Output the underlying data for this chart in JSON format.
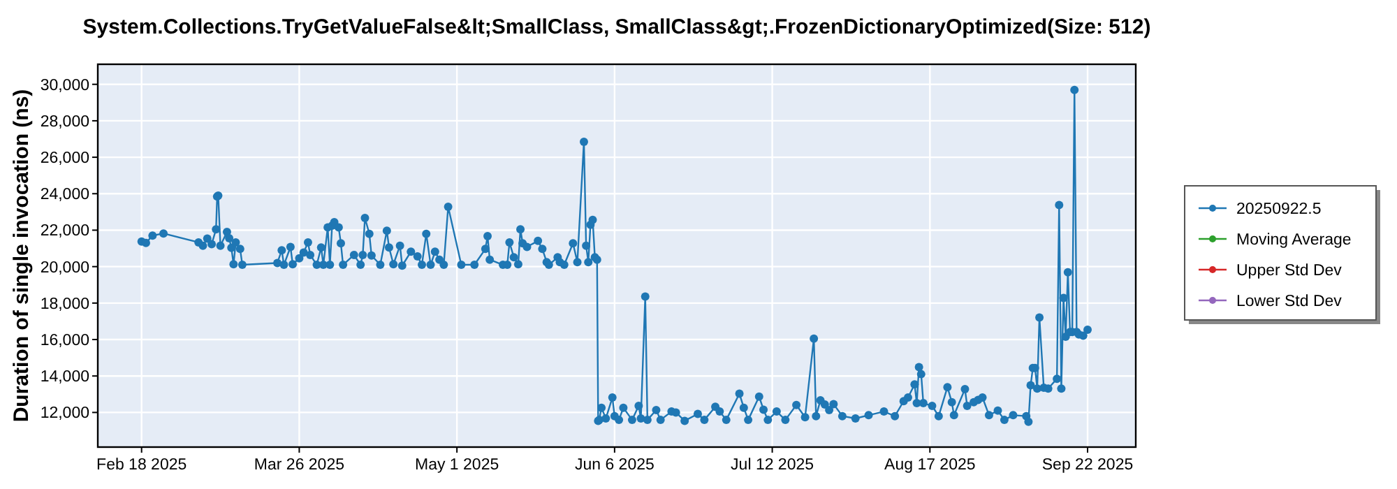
{
  "chart_data": {
    "type": "line",
    "title": "System.Collections.TryGetValueFalse&lt;SmallClass, SmallClass&gt;.FrozenDictionaryOptimized(Size: 512)",
    "ylabel": "Duration of single invocation (ns)",
    "x": [
      "2025-02-18",
      "2025-02-19",
      "2025-02-20T12:00",
      "2025-02-23",
      "2025-03-03",
      "2025-03-04",
      "2025-03-05",
      "2025-03-06",
      "2025-03-07",
      "2025-03-07T06:00",
      "2025-03-07T12:00",
      "2025-03-08",
      "2025-03-09T12:00",
      "2025-03-10",
      "2025-03-10T12:00",
      "2025-03-11",
      "2025-03-11T12:00",
      "2025-03-12T12:00",
      "2025-03-13",
      "2025-03-21",
      "2025-03-22",
      "2025-03-22T12:00",
      "2025-03-24",
      "2025-03-24T12:00",
      "2025-03-26",
      "2025-03-27",
      "2025-03-28",
      "2025-03-28T12:00",
      "2025-03-30",
      "2025-03-31",
      "2025-03-31T12:00",
      "2025-04-01T12:00",
      "2025-04-02",
      "2025-04-02T12:00",
      "2025-04-03",
      "2025-04-04",
      "2025-04-04T12:00",
      "2025-04-05",
      "2025-04-07T12:00",
      "2025-04-09",
      "2025-04-09T12:00",
      "2025-04-10",
      "2025-04-11",
      "2025-04-11T12:00",
      "2025-04-13T12:00",
      "2025-04-15",
      "2025-04-15T12:00",
      "2025-04-16T12:00",
      "2025-04-18",
      "2025-04-18T12:00",
      "2025-04-20T12:00",
      "2025-04-22",
      "2025-04-23",
      "2025-04-24",
      "2025-04-25",
      "2025-04-26",
      "2025-04-27",
      "2025-04-28",
      "2025-04-29",
      "2025-05-02",
      "2025-05-05",
      "2025-05-07T12:00",
      "2025-05-08",
      "2025-05-08T12:00",
      "2025-05-11T12:00",
      "2025-05-12T12:00",
      "2025-05-13",
      "2025-05-14",
      "2025-05-15",
      "2025-05-15T12:00",
      "2025-05-16",
      "2025-05-17",
      "2025-05-19T12:00",
      "2025-05-20T12:00",
      "2025-05-21T12:00",
      "2025-05-22",
      "2025-05-24",
      "2025-05-24T12:00",
      "2025-05-25T12:00",
      "2025-05-27T12:00",
      "2025-05-28T12:00",
      "2025-05-30",
      "2025-05-30T12:00",
      "2025-05-31",
      "2025-05-31T12:00",
      "2025-06-01",
      "2025-06-01T12:00",
      "2025-06-02",
      "2025-06-02T06:00",
      "2025-06-02T12:00",
      "2025-06-03",
      "2025-06-04",
      "2025-06-05T12:00",
      "2025-06-06",
      "2025-06-07",
      "2025-06-08",
      "2025-06-10",
      "2025-06-11T12:00",
      "2025-06-12",
      "2025-06-13",
      "2025-06-13T12:00",
      "2025-06-15T12:00",
      "2025-06-16T12:00",
      "2025-06-19",
      "2025-06-20",
      "2025-06-22",
      "2025-06-25",
      "2025-06-26T12:00",
      "2025-06-29",
      "2025-06-30",
      "2025-07-01T12:00",
      "2025-07-04T12:00",
      "2025-07-05T12:00",
      "2025-07-06T12:00",
      "2025-07-09",
      "2025-07-10",
      "2025-07-11",
      "2025-07-13",
      "2025-07-15",
      "2025-07-17T12:00",
      "2025-07-19T12:00",
      "2025-07-21T12:00",
      "2025-07-22",
      "2025-07-23",
      "2025-07-24",
      "2025-07-25",
      "2025-07-26",
      "2025-07-28",
      "2025-07-31",
      "2025-08-03",
      "2025-08-06T12:00",
      "2025-08-09",
      "2025-08-11",
      "2025-08-12",
      "2025-08-13T12:00",
      "2025-08-14",
      "2025-08-14T12:00",
      "2025-08-15",
      "2025-08-15T12:00",
      "2025-08-17T12:00",
      "2025-08-19",
      "2025-08-21",
      "2025-08-22",
      "2025-08-22T12:00",
      "2025-08-25",
      "2025-08-25T12:00",
      "2025-08-27",
      "2025-08-28",
      "2025-08-29",
      "2025-08-30T12:00",
      "2025-09-01T12:00",
      "2025-09-03",
      "2025-09-05",
      "2025-09-08",
      "2025-09-08T12:00",
      "2025-09-09",
      "2025-09-09T12:00",
      "2025-09-10",
      "2025-09-10T12:00",
      "2025-09-11",
      "2025-09-12",
      "2025-09-13",
      "2025-09-15",
      "2025-09-15T12:00",
      "2025-09-16",
      "2025-09-16T12:00",
      "2025-09-17",
      "2025-09-17T12:00",
      "2025-09-18",
      "2025-09-18T12:00",
      "2025-09-19",
      "2025-09-19T12:00",
      "2025-09-20",
      "2025-09-21",
      "2025-09-22"
    ],
    "series": [
      {
        "name": "20250922.5",
        "color": "#1f77b4",
        "values": [
          21380,
          21300,
          21700,
          21820,
          21330,
          21150,
          21540,
          21230,
          22050,
          23850,
          23900,
          21150,
          21900,
          21560,
          21030,
          20130,
          21330,
          20970,
          20100,
          20200,
          20900,
          20100,
          21080,
          20130,
          20460,
          20770,
          21330,
          20640,
          20100,
          21050,
          20100,
          22150,
          20100,
          22250,
          22440,
          22150,
          21280,
          20100,
          20640,
          20100,
          20640,
          22670,
          21800,
          20610,
          20100,
          21970,
          21050,
          20130,
          21150,
          20050,
          20820,
          20560,
          20100,
          21800,
          20100,
          20820,
          20380,
          20100,
          23280,
          20100,
          20100,
          20970,
          21670,
          20380,
          20100,
          20100,
          21330,
          20510,
          20130,
          22050,
          21280,
          21080,
          21410,
          20970,
          20250,
          20100,
          20510,
          20250,
          20100,
          21280,
          20250,
          26850,
          21150,
          20250,
          22300,
          22560,
          20510,
          20380,
          11540,
          11590,
          12260,
          11670,
          12820,
          11800,
          11590,
          12260,
          11590,
          12360,
          11670,
          18360,
          11590,
          12130,
          11590,
          12050,
          12000,
          11540,
          11920,
          11590,
          12310,
          12050,
          11590,
          13030,
          12260,
          11590,
          12870,
          12150,
          11590,
          12050,
          11590,
          12410,
          11740,
          16050,
          11800,
          12670,
          12440,
          12130,
          12460,
          11800,
          11670,
          11850,
          12050,
          11800,
          12620,
          12820,
          13540,
          12510,
          14490,
          14100,
          12510,
          12360,
          11800,
          13390,
          12560,
          11850,
          13280,
          12360,
          12560,
          12690,
          12820,
          11850,
          12100,
          11590,
          11850,
          11800,
          11490,
          13490,
          14440,
          14440,
          13310,
          17210,
          13360,
          13310,
          13850,
          23380,
          13310,
          18280,
          16150,
          19690,
          16410,
          16410,
          29690,
          16410,
          16280,
          16210,
          16540
        ]
      },
      {
        "name": "Moving Average",
        "color": "#2ca02c",
        "values": [
          null,
          null,
          null,
          null,
          null,
          null,
          null,
          null,
          null,
          null,
          null,
          null,
          null,
          null,
          null,
          null,
          null,
          null,
          null,
          null,
          null,
          null,
          null,
          null,
          null,
          null,
          null,
          null,
          null,
          null,
          null,
          null,
          null,
          null,
          null,
          null,
          null,
          null,
          null,
          null,
          null,
          null,
          null,
          null,
          null,
          null,
          null,
          null,
          null,
          null,
          null,
          null,
          null,
          null,
          null,
          null,
          null,
          null,
          null,
          null,
          null,
          null,
          null,
          null,
          null,
          null,
          null,
          null,
          null,
          null,
          null,
          null,
          null,
          null,
          null,
          null,
          null,
          null,
          null,
          null,
          null,
          null,
          null,
          null,
          null,
          null,
          null,
          null,
          null,
          null,
          null,
          null,
          null,
          null,
          null,
          null,
          null,
          null,
          null,
          null,
          null,
          null,
          null,
          null,
          null,
          null,
          null,
          null,
          null,
          null,
          null,
          null,
          null,
          null,
          null,
          null,
          null,
          null,
          null,
          null,
          null,
          null,
          null,
          null,
          null,
          null,
          null,
          null,
          null,
          null,
          null,
          null,
          null,
          null,
          null,
          null,
          null,
          null,
          null,
          null,
          null,
          null,
          null,
          null,
          null,
          null,
          null,
          null,
          null,
          null,
          null,
          null,
          null,
          null,
          null,
          null,
          null,
          null,
          null,
          null,
          null,
          null,
          null,
          null,
          null,
          null,
          null,
          null,
          null,
          null,
          null,
          null,
          null,
          null,
          null
        ]
      },
      {
        "name": "Upper Std Dev",
        "color": "#d62728",
        "values": [
          null,
          null,
          null,
          null,
          null,
          null,
          null,
          null,
          null,
          null,
          null,
          null,
          null,
          null,
          null,
          null,
          null,
          null,
          null,
          null,
          null,
          null,
          null,
          null,
          null,
          null,
          null,
          null,
          null,
          null,
          null,
          null,
          null,
          null,
          null,
          null,
          null,
          null,
          null,
          null,
          null,
          null,
          null,
          null,
          null,
          null,
          null,
          null,
          null,
          null,
          null,
          null,
          null,
          null,
          null,
          null,
          null,
          null,
          null,
          null,
          null,
          null,
          null,
          null,
          null,
          null,
          null,
          null,
          null,
          null,
          null,
          null,
          null,
          null,
          null,
          null,
          null,
          null,
          null,
          null,
          null,
          null,
          null,
          null,
          null,
          null,
          null,
          null,
          null,
          null,
          null,
          null,
          null,
          null,
          null,
          null,
          null,
          null,
          null,
          null,
          null,
          null,
          null,
          null,
          null,
          null,
          null,
          null,
          null,
          null,
          null,
          null,
          null,
          null,
          null,
          null,
          null,
          null,
          null,
          null,
          null,
          null,
          null,
          null,
          null,
          null,
          null,
          null,
          null,
          null,
          null,
          null,
          null,
          null,
          null,
          null,
          null,
          null,
          null,
          null,
          null,
          null,
          null,
          null,
          null,
          null,
          null,
          null,
          null,
          null,
          null,
          null,
          null,
          null,
          null,
          null,
          null,
          null,
          null,
          null,
          null,
          null,
          null,
          null,
          null,
          null,
          null,
          null,
          null,
          null,
          null,
          null,
          null,
          null,
          null
        ]
      },
      {
        "name": "Lower Std Dev",
        "color": "#9467bd",
        "values": [
          null,
          null,
          null,
          null,
          null,
          null,
          null,
          null,
          null,
          null,
          null,
          null,
          null,
          null,
          null,
          null,
          null,
          null,
          null,
          null,
          null,
          null,
          null,
          null,
          null,
          null,
          null,
          null,
          null,
          null,
          null,
          null,
          null,
          null,
          null,
          null,
          null,
          null,
          null,
          null,
          null,
          null,
          null,
          null,
          null,
          null,
          null,
          null,
          null,
          null,
          null,
          null,
          null,
          null,
          null,
          null,
          null,
          null,
          null,
          null,
          null,
          null,
          null,
          null,
          null,
          null,
          null,
          null,
          null,
          null,
          null,
          null,
          null,
          null,
          null,
          null,
          null,
          null,
          null,
          null,
          null,
          null,
          null,
          null,
          null,
          null,
          null,
          null,
          null,
          null,
          null,
          null,
          null,
          null,
          null,
          null,
          null,
          null,
          null,
          null,
          null,
          null,
          null,
          null,
          null,
          null,
          null,
          null,
          null,
          null,
          null,
          null,
          null,
          null,
          null,
          null,
          null,
          null,
          null,
          null,
          null,
          null,
          null,
          null,
          null,
          null,
          null,
          null,
          null,
          null,
          null,
          null,
          null,
          null,
          null,
          null,
          null,
          null,
          null,
          null,
          null,
          null,
          null,
          null,
          null,
          null,
          null,
          null,
          null,
          null,
          null,
          null,
          null,
          null,
          null,
          null,
          null,
          null,
          null,
          null,
          null,
          null,
          null,
          null,
          null,
          null,
          null,
          null,
          null,
          null,
          null,
          null,
          null,
          null,
          null
        ]
      }
    ],
    "xlim": [
      "2025-02-08",
      "2025-10-03"
    ],
    "xticks": [
      {
        "value": "2025-02-18",
        "label": "Feb 18 2025"
      },
      {
        "value": "2025-03-26",
        "label": "Mar 26 2025"
      },
      {
        "value": "2025-05-01",
        "label": "May 1 2025"
      },
      {
        "value": "2025-06-06",
        "label": "Jun 6 2025"
      },
      {
        "value": "2025-07-12",
        "label": "Jul 12 2025"
      },
      {
        "value": "2025-08-17",
        "label": "Aug 17 2025"
      },
      {
        "value": "2025-09-22",
        "label": "Sep 22 2025"
      }
    ],
    "ylim": [
      10100,
      31100
    ],
    "yticks": [
      {
        "value": 12000,
        "label": "12,000"
      },
      {
        "value": 14000,
        "label": "14,000"
      },
      {
        "value": 16000,
        "label": "16,000"
      },
      {
        "value": 18000,
        "label": "18,000"
      },
      {
        "value": 20000,
        "label": "20,000"
      },
      {
        "value": 22000,
        "label": "22,000"
      },
      {
        "value": 24000,
        "label": "24,000"
      },
      {
        "value": 26000,
        "label": "26,000"
      },
      {
        "value": 28000,
        "label": "28,000"
      },
      {
        "value": 30000,
        "label": "30,000"
      }
    ],
    "grid": true,
    "legend": "right",
    "marker": "circle",
    "line_style": "solid"
  }
}
